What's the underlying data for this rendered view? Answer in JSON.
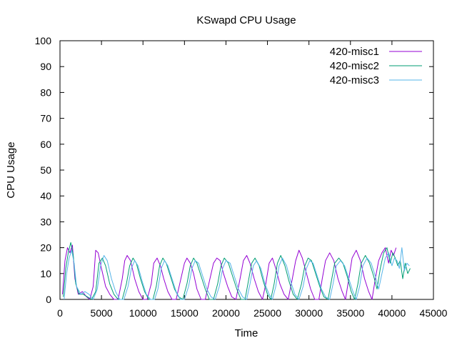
{
  "chart_data": {
    "type": "line",
    "title": "KSwapd CPU Usage",
    "xlabel": "Time",
    "ylabel": "CPU Usage",
    "xlim": [
      0,
      45000
    ],
    "ylim": [
      0,
      100
    ],
    "xticks": [
      0,
      5000,
      10000,
      15000,
      20000,
      25000,
      30000,
      35000,
      40000,
      45000
    ],
    "yticks": [
      0,
      10,
      20,
      30,
      40,
      50,
      60,
      70,
      80,
      90,
      100
    ],
    "grid": false,
    "legend_position": "top-right",
    "series": [
      {
        "name": "420-misc1",
        "color": "#9400d3",
        "x": [
          300,
          600,
          900,
          1200,
          1500,
          1800,
          2200,
          2700,
          3200,
          3600,
          4000,
          4300,
          4600,
          5000,
          5500,
          6000,
          6500,
          7000,
          7500,
          7800,
          8100,
          8500,
          9000,
          9500,
          10000,
          10500,
          11000,
          11300,
          11700,
          12100,
          12500,
          13000,
          13500,
          14000,
          14500,
          15000,
          15300,
          15700,
          16100,
          16500,
          17000,
          17500,
          18000,
          18500,
          18900,
          19300,
          19700,
          20200,
          20700,
          21200,
          21700,
          22100,
          22500,
          22900,
          23400,
          23900,
          24400,
          24800,
          25200,
          25600,
          26000,
          26500,
          27000,
          27500,
          28000,
          28400,
          28800,
          29200,
          29700,
          30200,
          30700,
          31200,
          31600,
          32000,
          32500,
          33000,
          33500,
          34000,
          34400,
          34800,
          35200,
          35700,
          36200,
          36700,
          37200,
          37600,
          38000,
          38400,
          38800,
          39200,
          39600,
          39900,
          40200,
          40500
        ],
        "y": [
          2,
          15,
          20,
          18,
          21,
          8,
          2,
          3,
          1,
          0,
          5,
          19,
          18,
          12,
          5,
          2,
          0,
          0,
          8,
          15,
          17,
          15,
          8,
          3,
          0,
          0,
          6,
          14,
          16,
          13,
          8,
          3,
          0,
          0,
          7,
          14,
          16,
          14,
          10,
          4,
          0,
          0,
          7,
          14,
          16,
          15,
          10,
          5,
          1,
          0,
          8,
          15,
          17,
          14,
          8,
          3,
          0,
          6,
          14,
          16,
          12,
          6,
          2,
          0,
          8,
          15,
          19,
          16,
          10,
          4,
          0,
          0,
          8,
          15,
          18,
          15,
          8,
          3,
          0,
          8,
          16,
          19,
          15,
          8,
          3,
          0,
          8,
          15,
          18,
          20,
          14,
          19,
          17,
          20
        ]
      },
      {
        "name": "420-misc2",
        "color": "#009e73",
        "x": [
          400,
          700,
          1000,
          1300,
          1600,
          1900,
          2300,
          2800,
          3300,
          3800,
          4300,
          4700,
          5100,
          5500,
          6000,
          6500,
          7000,
          7500,
          8000,
          8400,
          8800,
          9200,
          9700,
          10200,
          10700,
          11200,
          11600,
          12000,
          12400,
          12800,
          13300,
          13800,
          14300,
          14800,
          15300,
          15700,
          16100,
          16500,
          17000,
          17500,
          18000,
          18500,
          19000,
          19400,
          19800,
          20300,
          20800,
          21300,
          21800,
          22300,
          22700,
          23100,
          23500,
          24000,
          24500,
          25000,
          25400,
          25800,
          26200,
          26600,
          27100,
          27600,
          28100,
          28600,
          29100,
          29500,
          29900,
          30300,
          30800,
          31300,
          31800,
          32300,
          32700,
          33100,
          33600,
          34100,
          34600,
          35100,
          35500,
          35900,
          36300,
          36800,
          37300,
          37800,
          38200,
          38600,
          39000,
          39400,
          39800,
          40100,
          40400,
          40700,
          41000,
          41300,
          41600,
          41900,
          42200
        ],
        "y": [
          1,
          12,
          18,
          22,
          17,
          6,
          2,
          2,
          1,
          0,
          3,
          14,
          16,
          13,
          6,
          2,
          0,
          0,
          6,
          13,
          16,
          14,
          8,
          3,
          0,
          0,
          5,
          13,
          16,
          14,
          9,
          4,
          1,
          0,
          6,
          13,
          16,
          14,
          9,
          4,
          0,
          0,
          6,
          13,
          16,
          14,
          9,
          4,
          0,
          0,
          7,
          14,
          16,
          13,
          7,
          2,
          0,
          6,
          14,
          17,
          13,
          7,
          2,
          0,
          6,
          13,
          16,
          15,
          10,
          5,
          1,
          0,
          7,
          14,
          16,
          14,
          9,
          3,
          0,
          6,
          14,
          17,
          14,
          9,
          4,
          12,
          18,
          20,
          14,
          18,
          16,
          13,
          15,
          8,
          14,
          10,
          12
        ]
      },
      {
        "name": "420-misc3",
        "color": "#56b4e9",
        "x": [
          500,
          800,
          1100,
          1400,
          1700,
          2000,
          2500,
          3000,
          3500,
          4000,
          4500,
          4900,
          5300,
          5700,
          6200,
          6700,
          7200,
          7700,
          8200,
          8600,
          9000,
          9400,
          9900,
          10400,
          10900,
          11400,
          11800,
          12200,
          12600,
          13000,
          13500,
          14000,
          14500,
          15000,
          15500,
          15900,
          16300,
          16700,
          17200,
          17700,
          18200,
          18700,
          19200,
          19600,
          20000,
          20500,
          21000,
          21500,
          22000,
          22500,
          22900,
          23300,
          23700,
          24200,
          24700,
          25200,
          25600,
          26000,
          26400,
          26800,
          27300,
          27800,
          28300,
          28800,
          29300,
          29700,
          30100,
          30500,
          31000,
          31500,
          32000,
          32500,
          32900,
          33300,
          33800,
          34300,
          34800,
          35300,
          35700,
          36100,
          36500,
          37000,
          37500,
          38000,
          38400,
          38800,
          39200,
          39600,
          40000,
          40300,
          40600,
          40900,
          41200,
          41500,
          41800,
          42100
        ],
        "y": [
          0,
          10,
          16,
          19,
          14,
          5,
          2,
          3,
          2,
          0,
          4,
          13,
          17,
          15,
          8,
          3,
          0,
          0,
          5,
          12,
          15,
          13,
          7,
          2,
          0,
          0,
          4,
          12,
          15,
          13,
          8,
          3,
          0,
          0,
          5,
          12,
          15,
          14,
          9,
          4,
          1,
          0,
          5,
          12,
          15,
          14,
          9,
          4,
          1,
          0,
          6,
          13,
          15,
          12,
          6,
          2,
          0,
          5,
          13,
          16,
          13,
          7,
          2,
          0,
          5,
          12,
          15,
          14,
          9,
          4,
          1,
          0,
          6,
          13,
          15,
          13,
          8,
          3,
          0,
          5,
          13,
          16,
          14,
          9,
          4,
          10,
          16,
          18,
          13,
          16,
          15,
          12,
          20,
          11,
          14,
          13
        ]
      }
    ]
  }
}
